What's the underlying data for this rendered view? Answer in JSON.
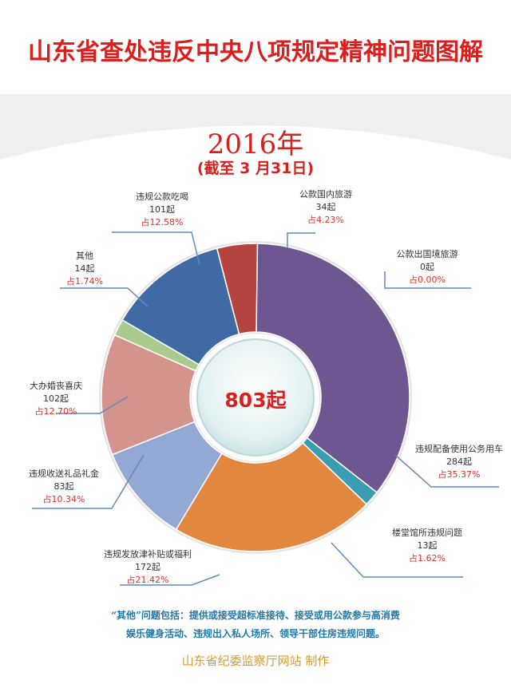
{
  "title": "山东省查处违反中央八项规定精神问题图解",
  "year": "2016年",
  "date_note": "(截至 3 月31日)",
  "center_total": "803起",
  "colors": {
    "title_red": "#d9201f",
    "footnote_blue": "#1f78a8",
    "credit_gold": "#d89a2a"
  },
  "chart_data": {
    "type": "pie",
    "total": 803,
    "slices": [
      {
        "name": "公款国内旅游",
        "count_label": "34起",
        "pct_label": "占4.23%",
        "value": 34,
        "color": "#b5443f"
      },
      {
        "name": "公款出国境旅游",
        "count_label": "0起",
        "pct_label": "占0.00%",
        "value": 0,
        "color": "#999999"
      },
      {
        "name": "违规配备使用公务用车",
        "count_label": "284起",
        "pct_label": "占35.37%",
        "value": 284,
        "color": "#6e5791"
      },
      {
        "name": "楼堂馆所违规问题",
        "count_label": "13起",
        "pct_label": "占1.62%",
        "value": 13,
        "color": "#3a9cb1"
      },
      {
        "name": "违规发放津补贴或福利",
        "count_label": "172起",
        "pct_label": "占21.42%",
        "value": 172,
        "color": "#e1873f"
      },
      {
        "name": "违规收送礼品礼金",
        "count_label": "83起",
        "pct_label": "占10.34%",
        "value": 83,
        "color": "#93a8d3"
      },
      {
        "name": "大办婚丧喜庆",
        "count_label": "102起",
        "pct_label": "占12.70%",
        "value": 102,
        "color": "#d4938c"
      },
      {
        "name": "其他",
        "count_label": "14起",
        "pct_label": "占1.74%",
        "value": 14,
        "color": "#a9cc8e"
      },
      {
        "name": "违规公款吃喝",
        "count_label": "101起",
        "pct_label": "占12.58%",
        "value": 101,
        "color": "#3f6aa3"
      }
    ]
  },
  "footnote_lines": [
    "“其他”问题包括：提供或接受超标准接待、接受或用公款参与高消费",
    "娱乐健身活动、违规出入私人场所、领导干部住房违规问题。"
  ],
  "credit": "山东省纪委监察厅网站  制作"
}
